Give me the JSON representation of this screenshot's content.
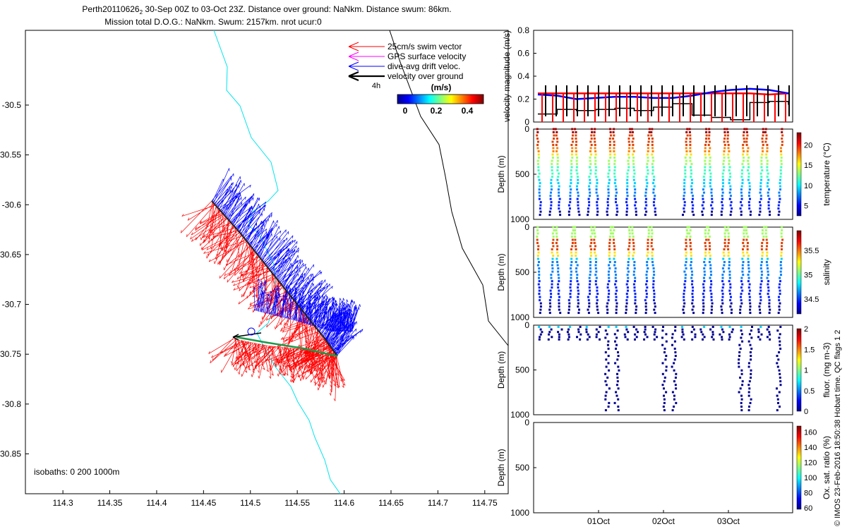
{
  "title": {
    "line1_prefix": "Perth20110626",
    "line1_sub": "2",
    "line1_rest": " 30-Sep 00Z to 03-Oct 23Z. Distance over ground: NaNkm. Distance swum: 86km.",
    "line2": "Mission total D.O.G.: NaNkm. Swum: 2157km. nrot ucur:0"
  },
  "legend": {
    "items": [
      {
        "label": "25cm/s swim vector",
        "color": "#ff0000"
      },
      {
        "label": "GPS surface velocity",
        "color": "#ff00ff"
      },
      {
        "label": "dive-avg drift veloc.",
        "color": "#0000ff"
      },
      {
        "label": "velocity over ground",
        "color": "#000000"
      }
    ],
    "duration_label": "4h",
    "colorbar_title": "(m/s)",
    "colorbar_ticks": [
      "0",
      "0.2",
      "0.4"
    ]
  },
  "map": {
    "isobaths_label": "isobaths: 0   200  1000m",
    "x_ticks": [
      114.3,
      114.35,
      114.4,
      114.45,
      114.5,
      114.55,
      114.6,
      114.65,
      114.7,
      114.75
    ],
    "y_ticks": [
      -30.5,
      -30.55,
      -30.6,
      -30.65,
      -30.7,
      -30.75,
      -30.8,
      -30.85
    ],
    "xlim": [
      114.26,
      114.775
    ],
    "ylim": [
      -30.89,
      -30.425
    ]
  },
  "side_note": "© IMOS 23-Feb-2016 18:50:38 Hobart time. QC flags 1  2",
  "chart_data": [
    {
      "type": "line",
      "ylabel": "velocity magnitude (m/s)",
      "ylim": [
        0,
        0.8
      ],
      "y_ticks": [
        0,
        0.2,
        0.4,
        0.6,
        0.8
      ],
      "series": [
        {
          "color": "#ff0000",
          "values": [
            0.25,
            0.25,
            0.25,
            0.25,
            0.25,
            0.25,
            0.25,
            0.25,
            0.25,
            0.25,
            0.25,
            0.25,
            0.24,
            0.25
          ]
        },
        {
          "color": "#0000ff",
          "values": [
            0.24,
            0.23,
            0.2,
            0.21,
            0.22,
            0.22,
            0.21,
            0.21,
            0.23,
            0.26,
            0.28,
            0.29,
            0.28,
            0.25
          ]
        },
        {
          "color": "#000000",
          "values": [
            0.07,
            0.11,
            0.1,
            0.11,
            0.12,
            0.1,
            0.13,
            0.16,
            0.06,
            0.04,
            0.02,
            0.17,
            0.18,
            0.15
          ]
        }
      ]
    },
    {
      "type": "scatter",
      "ylabel": "Depth (m)",
      "colorbar_label": "temperature (°C)",
      "colorbar_ticks": [
        5,
        10,
        15,
        20
      ],
      "y_ticks": [
        0,
        500,
        1000
      ],
      "ylim": [
        1000,
        0
      ]
    },
    {
      "type": "scatter",
      "ylabel": "Depth (m)",
      "colorbar_label": "salinity",
      "colorbar_ticks": [
        34.5,
        35,
        35.5
      ],
      "y_ticks": [
        0,
        500,
        1000
      ],
      "ylim": [
        1000,
        0
      ]
    },
    {
      "type": "scatter",
      "ylabel": "Depth (m)",
      "colorbar_label": "fluor. (mg m-3)",
      "colorbar_ticks": [
        0,
        0.5,
        1,
        1.5,
        2
      ],
      "y_ticks": [
        0,
        500,
        1000
      ],
      "ylim": [
        1000,
        0
      ]
    },
    {
      "type": "scatter",
      "ylabel": "Depth (m)",
      "colorbar_label": "Ox. sat. ratio (%)",
      "colorbar_ticks": [
        60,
        80,
        100,
        120,
        140,
        160
      ],
      "y_ticks": [
        0,
        500,
        1000
      ],
      "ylim": [
        1000,
        0
      ],
      "x_tick_labels": [
        "01Oct",
        "02Oct",
        "03Oct"
      ]
    }
  ]
}
